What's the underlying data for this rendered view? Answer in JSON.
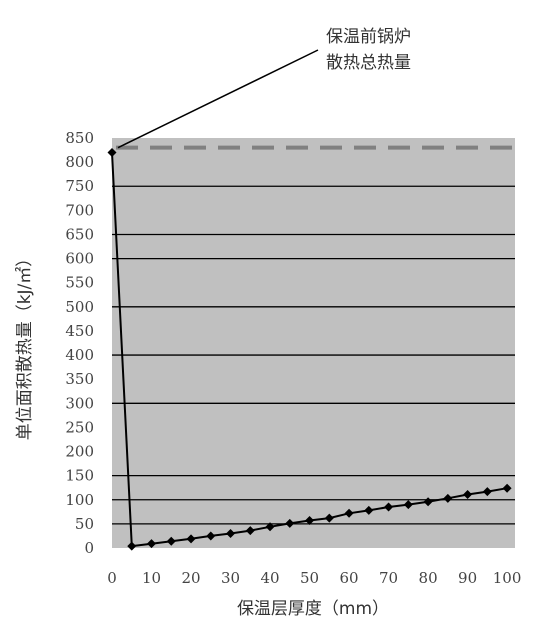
{
  "chart_data": {
    "type": "line",
    "xlabel": "保温层厚度（mm）",
    "ylabel": "单位面积散热量（kJ/㎡）",
    "xlim": [
      0,
      102
    ],
    "ylim": [
      0,
      850
    ],
    "x_ticks": [
      0,
      10,
      20,
      30,
      40,
      50,
      60,
      70,
      80,
      90,
      100
    ],
    "x_tick_labels": [
      "0",
      "10",
      "20",
      "30",
      "40",
      "50",
      "60",
      "70",
      "80",
      "90",
      "100"
    ],
    "y_ticks": [
      0,
      50,
      100,
      150,
      200,
      250,
      300,
      350,
      400,
      450,
      500,
      550,
      600,
      650,
      700,
      750,
      800,
      850
    ],
    "y_tick_labels": [
      "0",
      "50",
      "100",
      "150",
      "200",
      "250",
      "300",
      "350",
      "400",
      "450",
      "500",
      "550",
      "600",
      "650",
      "700",
      "750",
      "800",
      "850"
    ],
    "gridlines": [
      50,
      100,
      150,
      300,
      400,
      500,
      600,
      650,
      750
    ],
    "grid": true,
    "background_color": "#c0c0c0",
    "line_color": "#000000",
    "reference_color": "#808080",
    "series": [
      {
        "x": [
          0,
          5,
          10,
          15,
          20,
          25,
          30,
          35,
          40,
          45,
          50,
          55,
          60,
          65,
          70,
          75,
          80,
          85,
          90,
          95,
          100
        ],
        "y": [
          820,
          4,
          9,
          14,
          19,
          25,
          30,
          36,
          44,
          51,
          57,
          62,
          72,
          78,
          85,
          90,
          96,
          103,
          111,
          117,
          124
        ]
      }
    ],
    "reference_line": {
      "y": 830,
      "label": "保温前锅炉\n散热总热量"
    },
    "annotations": [
      {
        "text": "保温前锅炉",
        "target_x": 0,
        "target_y": 830
      },
      {
        "text": "散热总热量",
        "target_x": 0,
        "target_y": 830
      }
    ]
  }
}
